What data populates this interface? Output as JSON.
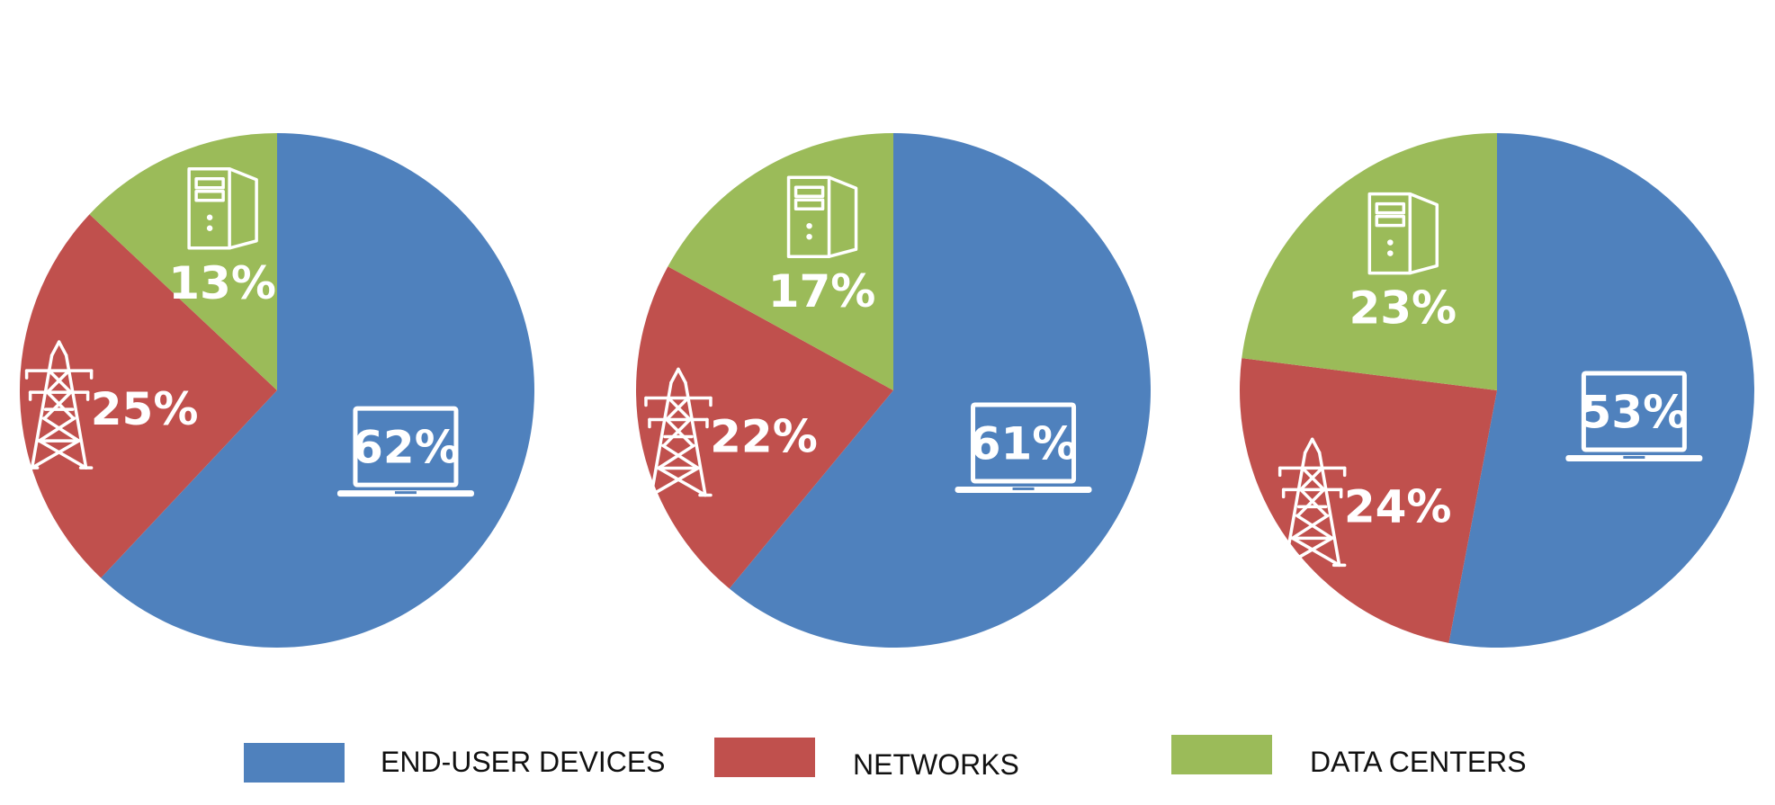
{
  "chart_data": [
    {
      "type": "pie",
      "title": "",
      "slices": [
        {
          "name": "END-USER DEVICES",
          "value": 62,
          "label": "62%",
          "color": "#4f81bd",
          "icon": "laptop-icon"
        },
        {
          "name": "NETWORKS",
          "value": 25,
          "label": "25%",
          "color": "#c0504d",
          "icon": "power-tower-icon"
        },
        {
          "name": "DATA CENTERS",
          "value": 13,
          "label": "13%",
          "color": "#9bbb59",
          "icon": "server-icon"
        }
      ]
    },
    {
      "type": "pie",
      "title": "",
      "slices": [
        {
          "name": "END-USER DEVICES",
          "value": 61,
          "label": "61%",
          "color": "#4f81bd",
          "icon": "laptop-icon"
        },
        {
          "name": "NETWORKS",
          "value": 22,
          "label": "22%",
          "color": "#c0504d",
          "icon": "power-tower-icon"
        },
        {
          "name": "DATA CENTERS",
          "value": 17,
          "label": "17%",
          "color": "#9bbb59",
          "icon": "server-icon"
        }
      ]
    },
    {
      "type": "pie",
      "title": "",
      "slices": [
        {
          "name": "END-USER DEVICES",
          "value": 53,
          "label": "53%",
          "color": "#4f81bd",
          "icon": "laptop-icon"
        },
        {
          "name": "NETWORKS",
          "value": 24,
          "label": "24%",
          "color": "#c0504d",
          "icon": "power-tower-icon"
        },
        {
          "name": "DATA CENTERS",
          "value": 23,
          "label": "23%",
          "color": "#9bbb59",
          "icon": "server-icon"
        }
      ]
    }
  ],
  "legend": {
    "placement": "bottom",
    "items": [
      {
        "label": "END-USER DEVICES",
        "color": "#4f81bd"
      },
      {
        "label": "NETWORKS",
        "color": "#c0504d"
      },
      {
        "label": "DATA CENTERS",
        "color": "#9bbb59"
      }
    ]
  }
}
